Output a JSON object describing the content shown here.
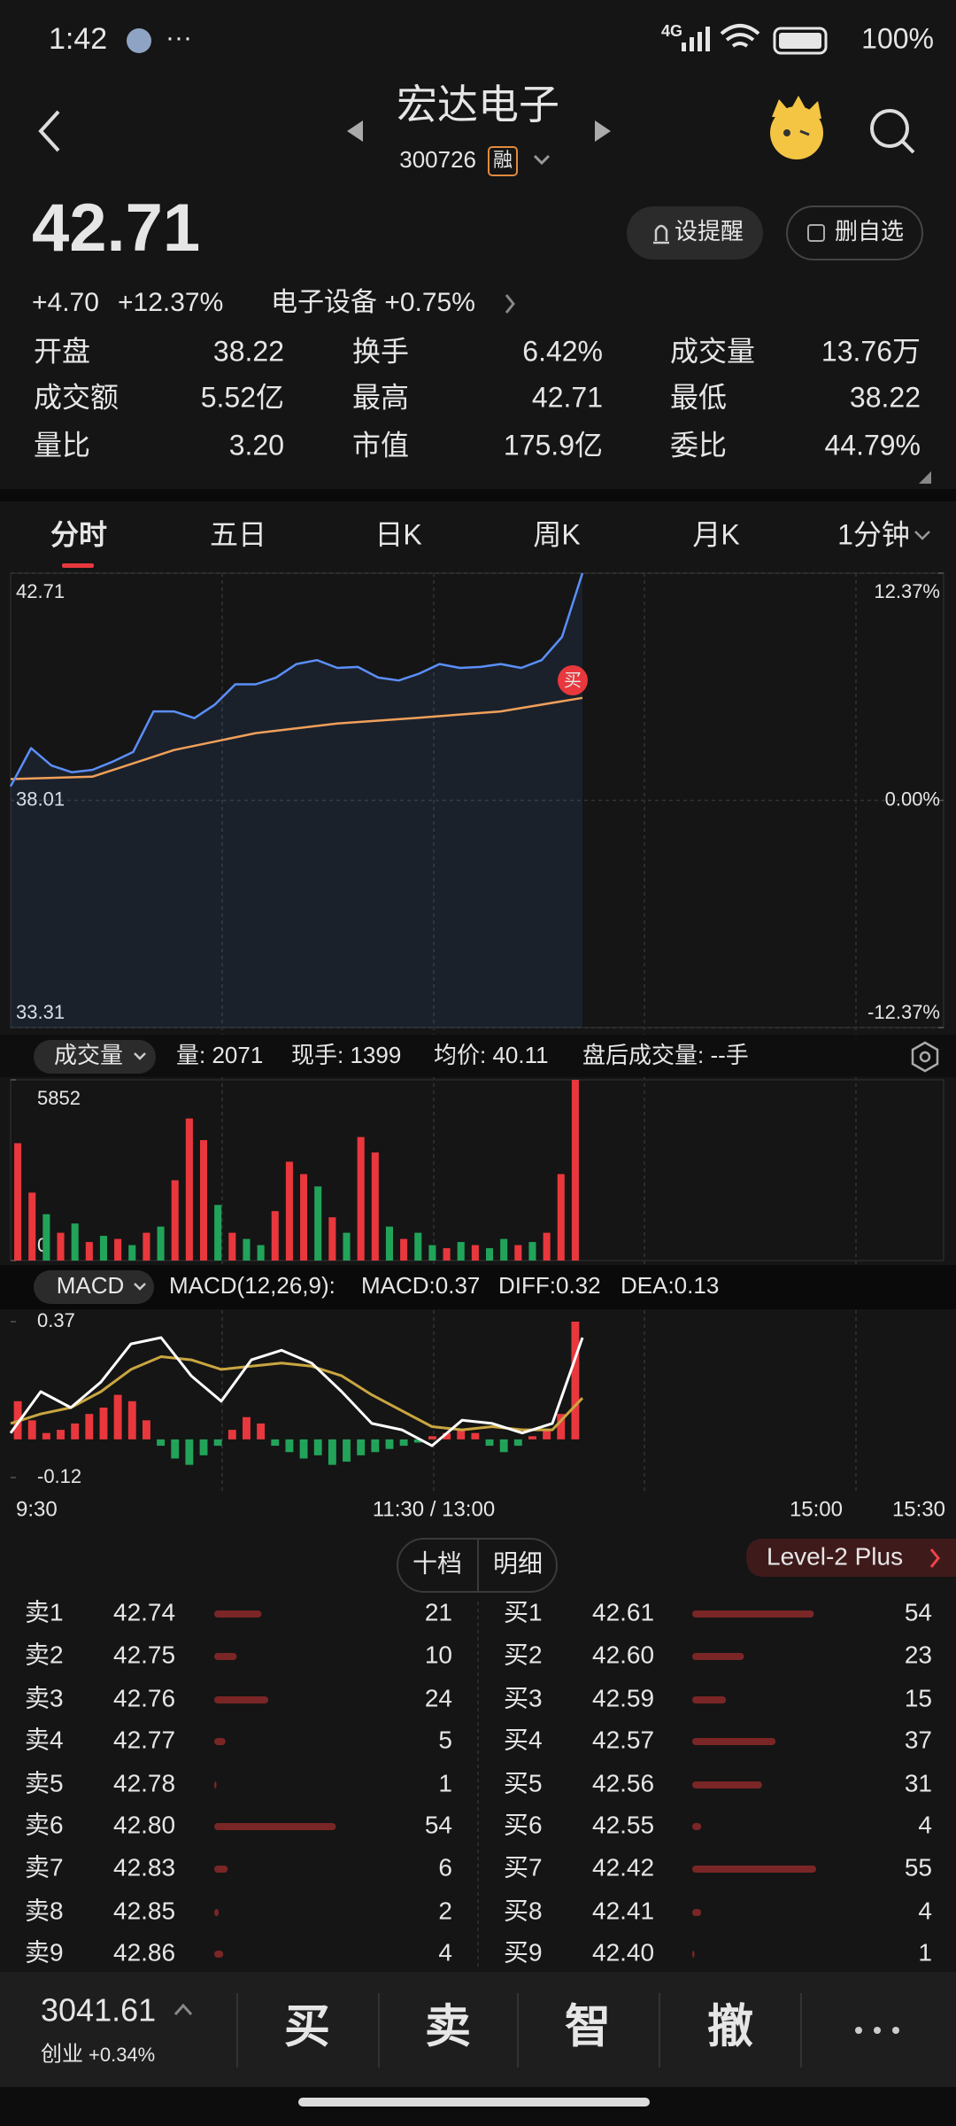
{
  "status_bar": {
    "time": "1:42",
    "network": "4G",
    "battery": "100%"
  },
  "header": {
    "title": "宏达电子",
    "code": "300726",
    "badge": "融"
  },
  "quote": {
    "price": "42.71",
    "change": "+4.70",
    "change_pct": "+12.37%",
    "sector": "电子设备 +0.75%",
    "buttons": [
      "设提醒",
      "删自选"
    ]
  },
  "stats": [
    {
      "label": "开盘",
      "value": "38.22",
      "color": "#f0434a"
    },
    {
      "label": "换手",
      "value": "6.42%",
      "color": "#e6e6e6"
    },
    {
      "label": "成交量",
      "value": "13.76万",
      "color": "#e6e6e6"
    },
    {
      "label": "成交额",
      "value": "5.52亿",
      "color": "#e6e6e6"
    },
    {
      "label": "最高",
      "value": "42.71",
      "color": "#f0434a"
    },
    {
      "label": "最低",
      "value": "38.22",
      "color": "#f0434a"
    },
    {
      "label": "量比",
      "value": "3.20",
      "color": "#e6e6e6"
    },
    {
      "label": "市值",
      "value": "175.9亿",
      "color": "#e6e6e6"
    },
    {
      "label": "委比",
      "value": "44.79%",
      "color": "#f0434a"
    }
  ],
  "tabs": [
    "分时",
    "五日",
    "日K",
    "周K",
    "月K",
    "1分钟"
  ],
  "price_chart": {
    "type": "line",
    "ylim": [
      33.31,
      42.71
    ],
    "yticks": [
      33.31,
      38.01,
      42.71
    ],
    "y2lim": [
      -12.37,
      12.37
    ],
    "y2ticks": [
      {
        "value": -12.37,
        "label": "-12.37%"
      },
      {
        "value": 0,
        "label": "0.00%"
      },
      {
        "value": 12.37,
        "label": "12.37%"
      }
    ],
    "grid": true,
    "price": {
      "color": "#5b8ff9",
      "values": [
        38.3,
        39.09,
        38.73,
        38.59,
        38.64,
        38.81,
        39.01,
        39.85,
        39.85,
        39.71,
        39.99,
        40.41,
        40.41,
        40.55,
        40.83,
        40.91,
        40.75,
        40.77,
        40.55,
        40.49,
        40.63,
        40.83,
        40.75,
        40.77,
        40.83,
        40.75,
        40.91,
        41.39,
        42.71
      ]
    },
    "average": {
      "color": "#f0a05a",
      "values": [
        38.45,
        38.5,
        39.05,
        39.4,
        39.6,
        39.72,
        39.85,
        40.13
      ]
    },
    "marker": "买"
  },
  "volume": {
    "type": "bar",
    "dropdown": "成交量",
    "info": [
      "量: 2071",
      "现手: 1399",
      "均价: 40.11",
      "盘后成交量: --手"
    ],
    "ylim": [
      0,
      5852
    ],
    "yticks": [
      0,
      5852
    ],
    "values": [
      3800,
      2200,
      1500,
      900,
      1200,
      600,
      800,
      700,
      500,
      900,
      1100,
      2600,
      4600,
      3900,
      1800,
      900,
      700,
      500,
      1600,
      3200,
      2800,
      2400,
      1400,
      900,
      4000,
      3500,
      1100,
      700,
      900,
      500,
      400,
      600,
      500,
      400,
      700,
      500,
      600,
      900,
      2800,
      5852
    ],
    "colors": [
      "#e8383d",
      "#e8383d",
      "#22a35a",
      "#e8383d",
      "#22a35a",
      "#e8383d",
      "#22a35a",
      "#e8383d",
      "#22a35a",
      "#e8383d",
      "#22a35a",
      "#e8383d",
      "#e8383d",
      "#e8383d",
      "#22a35a",
      "#e8383d",
      "#22a35a",
      "#22a35a",
      "#e8383d",
      "#e8383d",
      "#e8383d",
      "#22a35a",
      "#e8383d",
      "#22a35a",
      "#e8383d",
      "#e8383d",
      "#22a35a",
      "#e8383d",
      "#22a35a",
      "#22a35a",
      "#e8383d",
      "#22a35a",
      "#e8383d",
      "#22a35a",
      "#22a35a",
      "#e8383d",
      "#22a35a",
      "#e8383d",
      "#e8383d",
      "#e8383d"
    ]
  },
  "macd": {
    "type": "bar",
    "dropdown": "MACD",
    "params": "MACD(12,26,9):",
    "labels": [
      {
        "text": "MACD:0.37",
        "color": "#f0434a"
      },
      {
        "text": "DIFF:0.32",
        "color": "#dddddd"
      },
      {
        "text": "DEA:0.13",
        "color": "#d9b44a"
      }
    ],
    "ylim": [
      -0.12,
      0.37
    ],
    "yticks": [
      -0.12,
      0.37
    ],
    "histogram": [
      0.12,
      0.06,
      0.02,
      0.03,
      0.05,
      0.08,
      0.1,
      0.14,
      0.12,
      0.06,
      -0.02,
      -0.06,
      -0.08,
      -0.05,
      -0.02,
      0.03,
      0.07,
      0.05,
      -0.02,
      -0.04,
      -0.06,
      -0.05,
      -0.08,
      -0.07,
      -0.05,
      -0.04,
      -0.03,
      -0.02,
      -0.01,
      0.01,
      0.02,
      0.03,
      0.02,
      -0.02,
      -0.04,
      -0.02,
      0.01,
      0.03,
      0.08,
      0.37
    ],
    "diff": {
      "color": "#ffffff",
      "values": [
        0.02,
        0.15,
        0.1,
        0.18,
        0.3,
        0.32,
        0.2,
        0.12,
        0.25,
        0.28,
        0.24,
        0.15,
        0.05,
        0.03,
        -0.02,
        0.06,
        0.05,
        0.02,
        0.05,
        0.32
      ]
    },
    "dea": {
      "color": "#c9a640",
      "values": [
        0.05,
        0.08,
        0.1,
        0.15,
        0.22,
        0.26,
        0.25,
        0.22,
        0.23,
        0.24,
        0.23,
        0.2,
        0.14,
        0.09,
        0.04,
        0.03,
        0.04,
        0.03,
        0.03,
        0.13
      ]
    }
  },
  "time_axis": [
    "9:30",
    "11:30 / 13:00",
    "15:00",
    "15:30"
  ],
  "order_book": {
    "tabs": [
      "十档",
      "明细"
    ],
    "level2": "Level-2 Plus",
    "sell": [
      {
        "label": "卖1",
        "price": "42.74",
        "qty": 21
      },
      {
        "label": "卖2",
        "price": "42.75",
        "qty": 10
      },
      {
        "label": "卖3",
        "price": "42.76",
        "qty": 24
      },
      {
        "label": "卖4",
        "price": "42.77",
        "qty": 5
      },
      {
        "label": "卖5",
        "price": "42.78",
        "qty": 1
      },
      {
        "label": "卖6",
        "price": "42.80",
        "qty": 54
      },
      {
        "label": "卖7",
        "price": "42.83",
        "qty": 6
      },
      {
        "label": "卖8",
        "price": "42.85",
        "qty": 2
      },
      {
        "label": "卖9",
        "price": "42.86",
        "qty": 4
      }
    ],
    "buy": [
      {
        "label": "买1",
        "price": "42.61",
        "qty": 54
      },
      {
        "label": "买2",
        "price": "42.60",
        "qty": 23
      },
      {
        "label": "买3",
        "price": "42.59",
        "qty": 15
      },
      {
        "label": "买4",
        "price": "42.57",
        "qty": 37
      },
      {
        "label": "买5",
        "price": "42.56",
        "qty": 31
      },
      {
        "label": "买6",
        "price": "42.55",
        "qty": 4
      },
      {
        "label": "买7",
        "price": "42.42",
        "qty": 55
      },
      {
        "label": "买8",
        "price": "42.41",
        "qty": 4
      },
      {
        "label": "买9",
        "price": "42.40",
        "qty": 1
      }
    ]
  },
  "footer": {
    "index": "3041.61",
    "index_name": "创业",
    "index_change": "+0.34%",
    "actions": [
      "买",
      "卖",
      "智",
      "撤"
    ]
  }
}
